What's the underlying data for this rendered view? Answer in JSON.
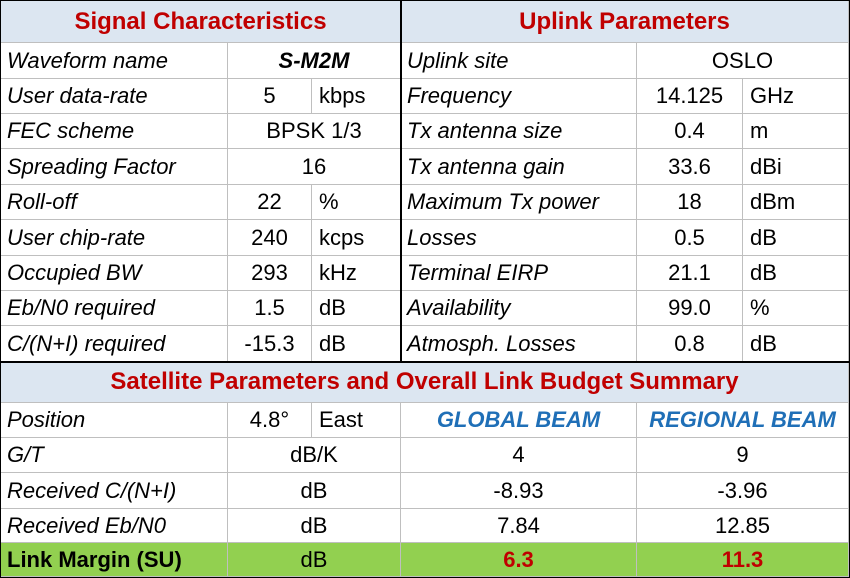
{
  "signal": {
    "title": "Signal Characteristics",
    "rows": [
      {
        "label": "Waveform name",
        "value": "S-M2M",
        "unit": ""
      },
      {
        "label": "User data-rate",
        "value": "5",
        "unit": "kbps"
      },
      {
        "label": "FEC scheme",
        "value": "BPSK 1/3",
        "unit": ""
      },
      {
        "label": "Spreading Factor",
        "value": "16",
        "unit": ""
      },
      {
        "label": "Roll-off",
        "value": "22",
        "unit": "%"
      },
      {
        "label": "User chip-rate",
        "value": "240",
        "unit": "kcps"
      },
      {
        "label": "Occupied BW",
        "value": "293",
        "unit": "kHz"
      },
      {
        "label": "Eb/N0 required",
        "value": "1.5",
        "unit": "dB"
      },
      {
        "label": "C/(N+I) required",
        "value": "-15.3",
        "unit": "dB"
      }
    ]
  },
  "uplink": {
    "title": "Uplink Parameters",
    "rows": [
      {
        "label": "Uplink site",
        "value": "OSLO",
        "unit": ""
      },
      {
        "label": "Frequency",
        "value": "14.125",
        "unit": "GHz"
      },
      {
        "label": "Tx antenna size",
        "value": "0.4",
        "unit": "m"
      },
      {
        "label": "Tx antenna gain",
        "value": "33.6",
        "unit": "dBi"
      },
      {
        "label": "Maximum Tx power",
        "value": "18",
        "unit": "dBm"
      },
      {
        "label": "Losses",
        "value": "0.5",
        "unit": "dB"
      },
      {
        "label": "Terminal EIRP",
        "value": "21.1",
        "unit": "dB"
      },
      {
        "label": "Availability",
        "value": "99.0",
        "unit": "%"
      },
      {
        "label": "Atmosph. Losses",
        "value": "0.8",
        "unit": "dB"
      }
    ]
  },
  "satellite": {
    "title": "Satellite Parameters and Overall Link Budget Summary",
    "position": {
      "label": "Position",
      "value": "4.8°",
      "unit": "East"
    },
    "beams": {
      "global": "GLOBAL BEAM",
      "regional": "REGIONAL BEAM"
    },
    "rows": [
      {
        "label": "G/T",
        "unit": "dB/K",
        "global": "4",
        "regional": "9"
      },
      {
        "label": "Received C/(N+I)",
        "unit": "dB",
        "global": "-8.93",
        "regional": "-3.96"
      },
      {
        "label": "Received Eb/N0",
        "unit": "dB",
        "global": "7.84",
        "regional": "12.85"
      }
    ],
    "margin": {
      "label": "Link Margin (SU)",
      "unit": "dB",
      "global": "6.3",
      "regional": "11.3"
    },
    "colors": {
      "header_bg": "#dce6f1",
      "header_text": "#c00000",
      "beam_text": "#1f6fb7",
      "margin_bg": "#92d050"
    }
  }
}
